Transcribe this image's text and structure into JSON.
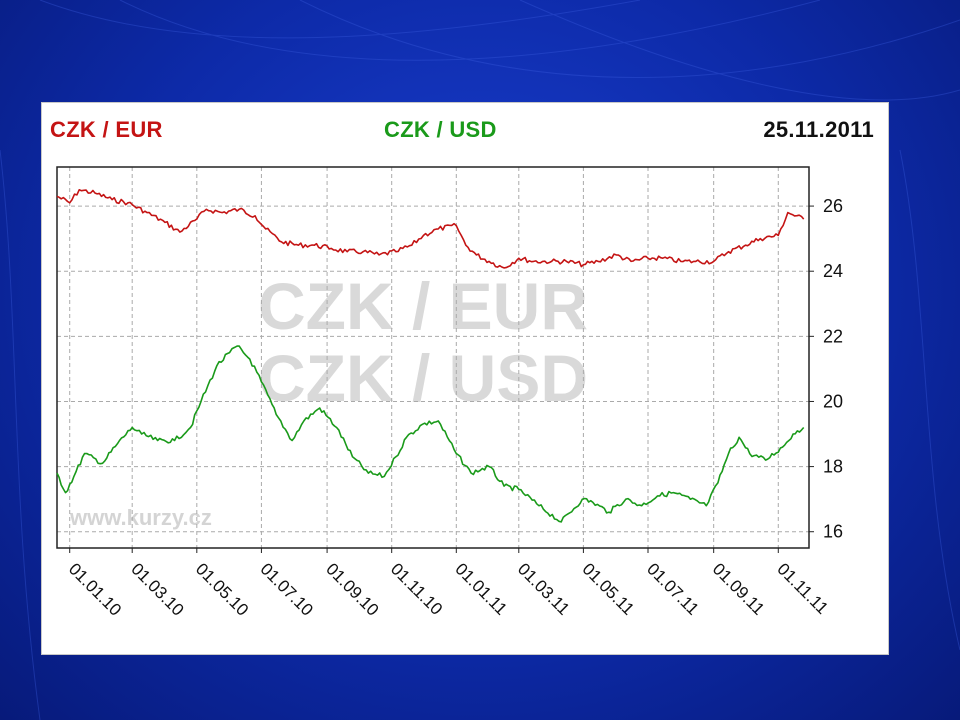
{
  "header": {
    "left_label": "CZK / EUR",
    "center_label": "CZK / USD",
    "date": "25.11.2011"
  },
  "watermark": {
    "line1": "CZK / EUR",
    "line2": "CZK / USD",
    "site": "www.kurzy.cz"
  },
  "colors": {
    "eur": "#c41414",
    "usd": "#1a9a1a",
    "grid": "#aaaaaa",
    "slide_background": "#0d2aa8"
  },
  "chart_data": {
    "type": "line",
    "x_tick_labels": [
      "01.01.10",
      "01.03.10",
      "01.05.10",
      "01.07.10",
      "01.09.10",
      "01.11.10",
      "01.01.11",
      "01.03.11",
      "01.05.11",
      "01.07.11",
      "01.09.11",
      "01.11.11"
    ],
    "y_tick_labels": [
      "16",
      "18",
      "20",
      "22",
      "24",
      "26"
    ],
    "ylim": [
      15.5,
      27.2
    ],
    "grid": true,
    "legend": "top",
    "series": [
      {
        "name": "CZK / EUR",
        "x": [
          "2009-12-20",
          "2010-01-01",
          "2010-01-10",
          "2010-01-25",
          "2010-02-10",
          "2010-02-25",
          "2010-03-15",
          "2010-04-01",
          "2010-04-15",
          "2010-05-01",
          "2010-05-10",
          "2010-05-25",
          "2010-06-10",
          "2010-06-25",
          "2010-07-05",
          "2010-07-20",
          "2010-08-05",
          "2010-08-20",
          "2010-09-05",
          "2010-09-20",
          "2010-10-05",
          "2010-10-20",
          "2010-11-05",
          "2010-11-20",
          "2010-12-01",
          "2010-12-15",
          "2011-01-01",
          "2011-01-10",
          "2011-01-20",
          "2011-02-01",
          "2011-02-15",
          "2011-03-01",
          "2011-03-15",
          "2011-04-01",
          "2011-04-15",
          "2011-05-01",
          "2011-05-15",
          "2011-06-01",
          "2011-06-15",
          "2011-07-01",
          "2011-07-15",
          "2011-08-01",
          "2011-08-15",
          "2011-09-01",
          "2011-09-15",
          "2011-10-01",
          "2011-10-15",
          "2011-11-01",
          "2011-11-10",
          "2011-11-25"
        ],
        "values": [
          26.3,
          26.1,
          26.5,
          26.4,
          26.2,
          26.1,
          25.8,
          25.5,
          25.2,
          25.6,
          25.9,
          25.8,
          25.9,
          25.7,
          25.3,
          24.9,
          24.8,
          24.8,
          24.7,
          24.6,
          24.6,
          24.5,
          24.6,
          24.8,
          25.1,
          25.3,
          25.4,
          24.8,
          24.5,
          24.3,
          24.1,
          24.4,
          24.3,
          24.3,
          24.3,
          24.2,
          24.3,
          24.5,
          24.3,
          24.4,
          24.4,
          24.3,
          24.3,
          24.3,
          24.6,
          24.8,
          25.0,
          25.1,
          25.8,
          25.6
        ]
      },
      {
        "name": "CZK / USD",
        "x": [
          "2009-12-20",
          "2009-12-28",
          "2010-01-05",
          "2010-01-15",
          "2010-02-01",
          "2010-02-15",
          "2010-03-01",
          "2010-03-10",
          "2010-03-25",
          "2010-04-10",
          "2010-04-25",
          "2010-05-05",
          "2010-05-20",
          "2010-06-01",
          "2010-06-08",
          "2010-06-20",
          "2010-07-01",
          "2010-07-15",
          "2010-07-30",
          "2010-08-10",
          "2010-08-25",
          "2010-09-10",
          "2010-09-25",
          "2010-10-10",
          "2010-10-25",
          "2010-11-05",
          "2010-11-15",
          "2010-11-30",
          "2010-12-15",
          "2011-01-01",
          "2011-01-15",
          "2011-02-01",
          "2011-02-15",
          "2011-03-01",
          "2011-03-20",
          "2011-04-10",
          "2011-04-30",
          "2011-05-10",
          "2011-05-25",
          "2011-06-10",
          "2011-06-25",
          "2011-07-10",
          "2011-07-25",
          "2011-08-10",
          "2011-08-25",
          "2011-09-05",
          "2011-09-15",
          "2011-09-25",
          "2011-10-05",
          "2011-10-20",
          "2011-11-05",
          "2011-11-15",
          "2011-11-25"
        ],
        "values": [
          17.8,
          17.2,
          17.7,
          18.4,
          18.1,
          18.7,
          19.2,
          19.0,
          18.8,
          18.8,
          19.2,
          20.0,
          21.1,
          21.5,
          21.7,
          21.3,
          20.6,
          19.6,
          18.8,
          19.4,
          19.8,
          19.2,
          18.3,
          17.8,
          17.7,
          18.3,
          18.9,
          19.3,
          19.4,
          18.4,
          17.8,
          18.0,
          17.4,
          17.3,
          16.8,
          16.3,
          17.0,
          16.9,
          16.6,
          17.0,
          16.8,
          17.1,
          17.2,
          17.0,
          16.8,
          17.5,
          18.4,
          18.9,
          18.4,
          18.2,
          18.6,
          19.0,
          19.2
        ]
      }
    ]
  }
}
